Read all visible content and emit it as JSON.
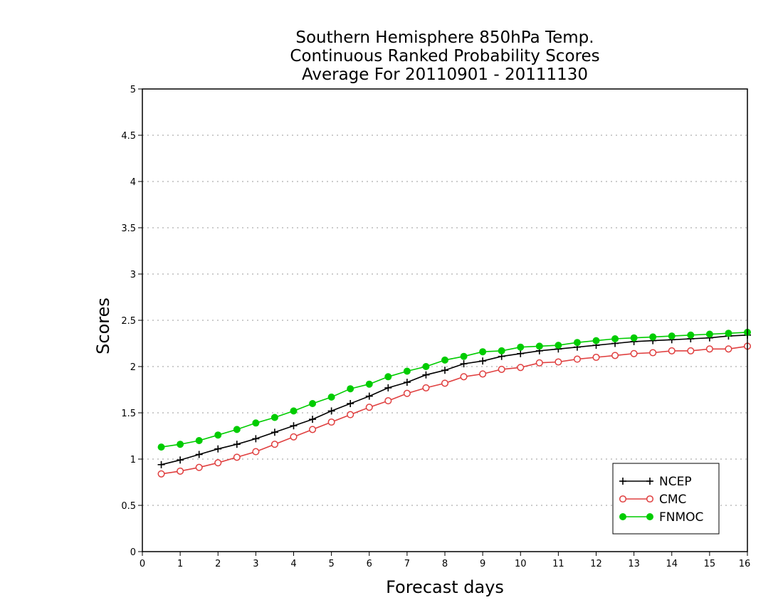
{
  "chart_data": {
    "type": "line",
    "title_lines": [
      "Southern Hemisphere 850hPa Temp.",
      "Continuous Ranked Probability Scores",
      "Average For 20110901 - 20111130"
    ],
    "xlabel": "Forecast days",
    "ylabel": "Scores",
    "xlim": [
      0,
      16
    ],
    "ylim": [
      0,
      5
    ],
    "x_ticks": [
      0,
      1,
      2,
      3,
      4,
      5,
      6,
      7,
      8,
      9,
      10,
      11,
      12,
      13,
      14,
      15,
      16
    ],
    "x_tick_labels": [
      "0",
      "1",
      "2",
      "3",
      "4",
      "5",
      "6",
      "7",
      "8",
      "9",
      "10",
      "11",
      "12",
      "13",
      "14",
      "15",
      "16"
    ],
    "y_ticks": [
      0,
      0.5,
      1,
      1.5,
      2,
      2.5,
      3,
      3.5,
      4,
      4.5,
      5
    ],
    "y_tick_labels": [
      "0",
      "0.5",
      "1",
      "1.5",
      "2",
      "2.5",
      "3",
      "3.5",
      "4",
      "4.5",
      "5"
    ],
    "grid": "horizontal dotted",
    "legend_position": "bottom-right",
    "x": [
      0.5,
      1,
      1.5,
      2,
      2.5,
      3,
      3.5,
      4,
      4.5,
      5,
      5.5,
      6,
      6.5,
      7,
      7.5,
      8,
      8.5,
      9,
      9.5,
      10,
      10.5,
      11,
      11.5,
      12,
      12.5,
      13,
      13.5,
      14,
      14.5,
      15,
      15.5,
      16
    ],
    "series": [
      {
        "name": "NCEP",
        "color": "#000000",
        "marker": "plus",
        "values": [
          0.94,
          0.99,
          1.05,
          1.11,
          1.16,
          1.22,
          1.29,
          1.36,
          1.43,
          1.52,
          1.6,
          1.68,
          1.77,
          1.83,
          1.91,
          1.96,
          2.03,
          2.06,
          2.11,
          2.14,
          2.17,
          2.19,
          2.21,
          2.23,
          2.25,
          2.27,
          2.28,
          2.29,
          2.3,
          2.31,
          2.33,
          2.34
        ]
      },
      {
        "name": "CMC",
        "color": "#e04040",
        "marker": "open-circle",
        "values": [
          0.84,
          0.87,
          0.91,
          0.96,
          1.02,
          1.08,
          1.16,
          1.24,
          1.32,
          1.4,
          1.48,
          1.56,
          1.63,
          1.71,
          1.77,
          1.82,
          1.89,
          1.92,
          1.97,
          1.99,
          2.04,
          2.05,
          2.08,
          2.1,
          2.12,
          2.14,
          2.15,
          2.17,
          2.17,
          2.19,
          2.19,
          2.22
        ]
      },
      {
        "name": "FNMOC",
        "color": "#00cc00",
        "marker": "filled-circle",
        "values": [
          1.13,
          1.16,
          1.2,
          1.26,
          1.32,
          1.39,
          1.45,
          1.52,
          1.6,
          1.67,
          1.76,
          1.81,
          1.89,
          1.95,
          2.0,
          2.07,
          2.11,
          2.16,
          2.17,
          2.21,
          2.22,
          2.23,
          2.26,
          2.28,
          2.3,
          2.31,
          2.32,
          2.33,
          2.34,
          2.35,
          2.36,
          2.37
        ]
      }
    ]
  }
}
